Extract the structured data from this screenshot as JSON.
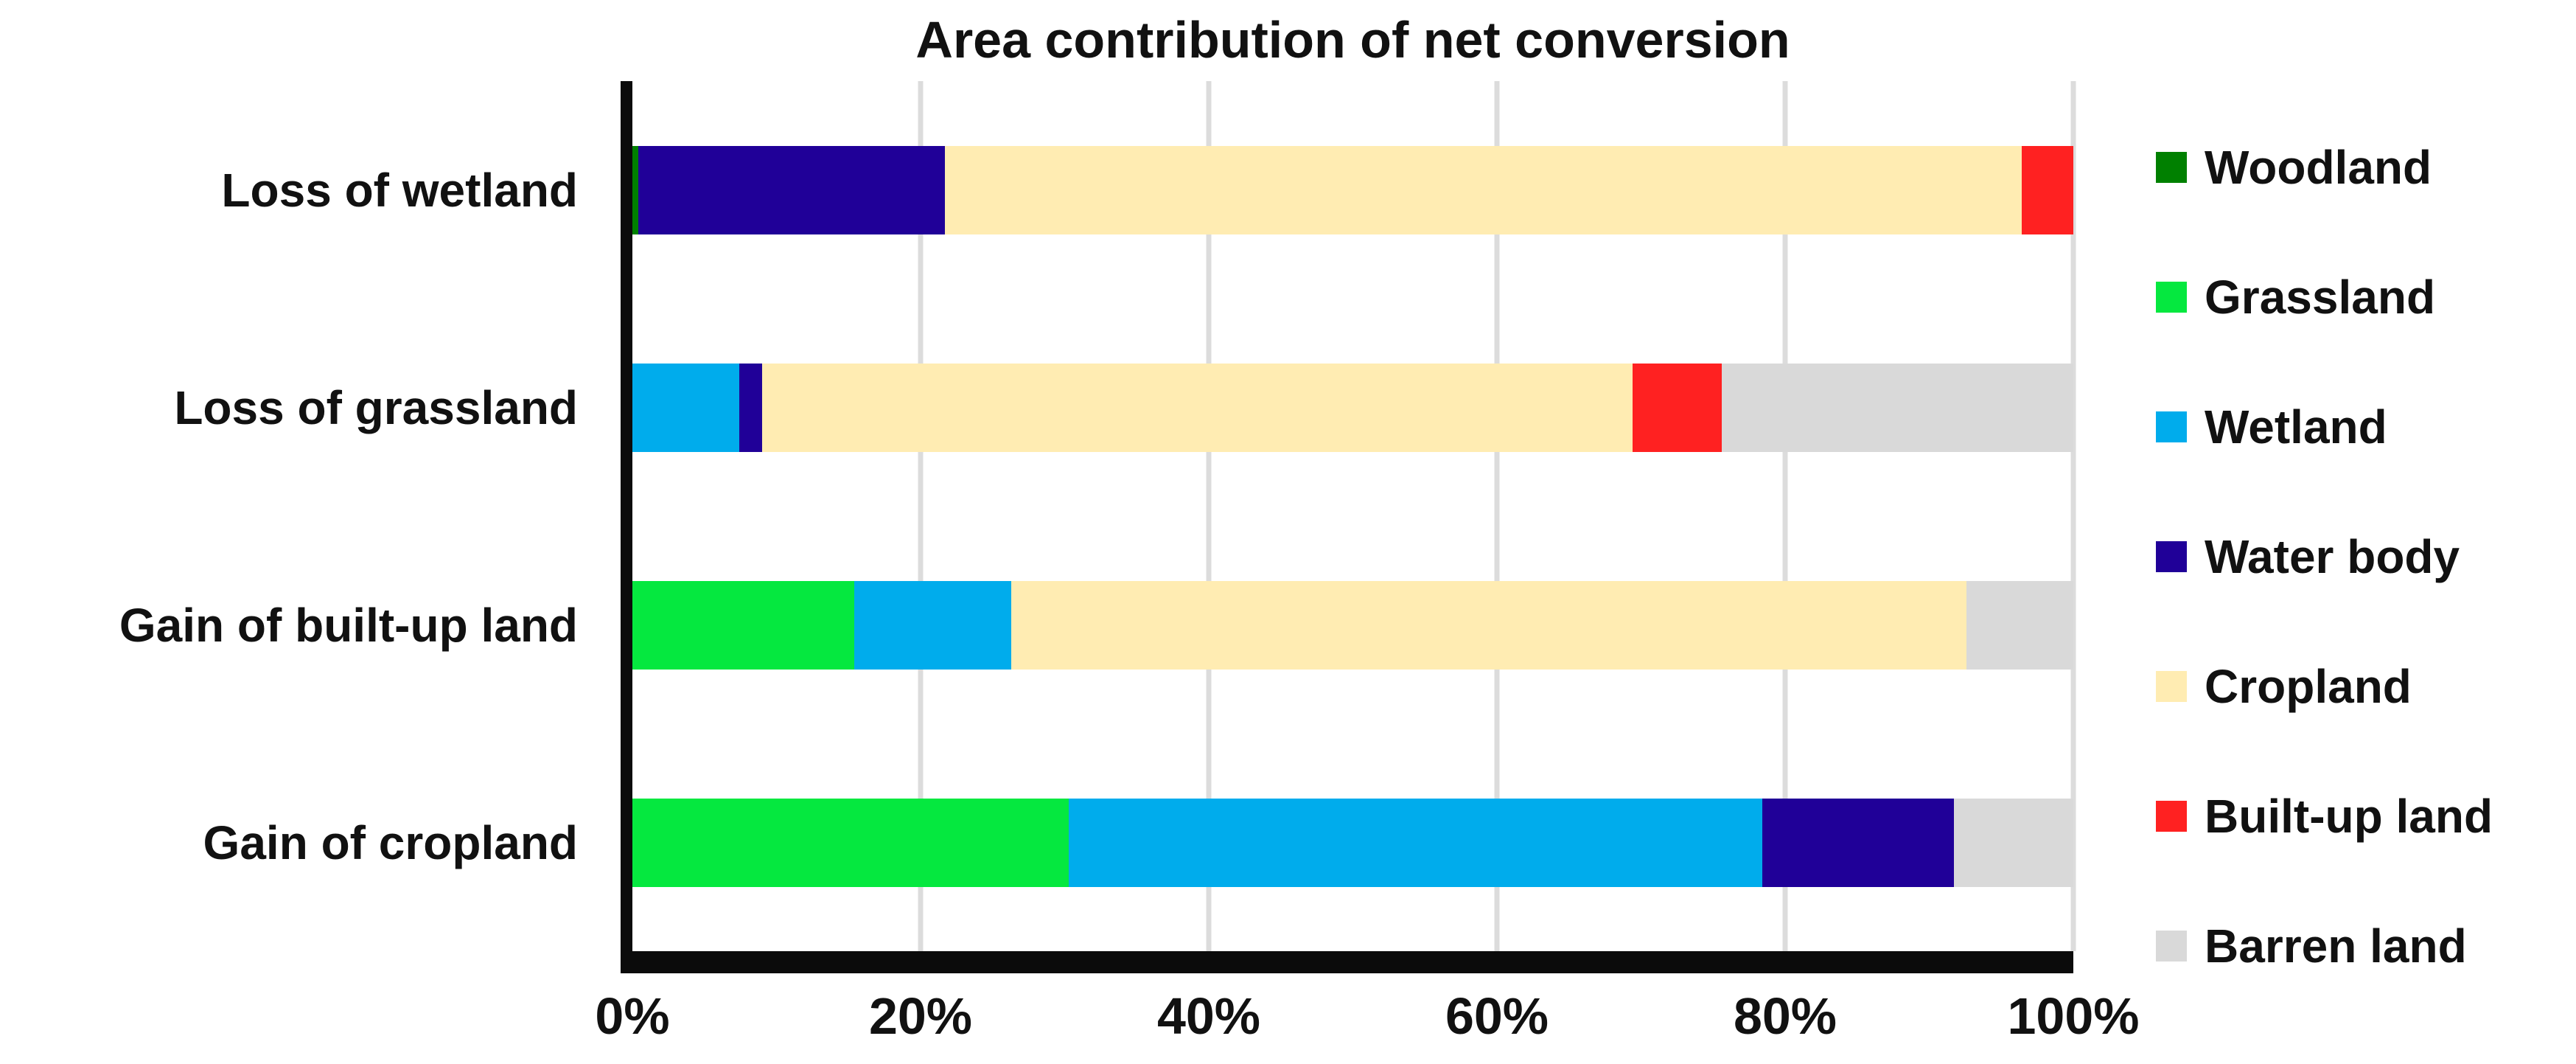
{
  "chart_data": {
    "type": "bar",
    "orientation": "horizontal",
    "stacked": true,
    "title": "Area contribution of net conversion",
    "categories": [
      "Loss of wetland",
      "Loss of grassland",
      "Gain of built-up land",
      "Gain of cropland"
    ],
    "series": [
      {
        "name": "Woodland",
        "color": "#008000",
        "values": [
          0.4,
          0,
          0,
          0
        ]
      },
      {
        "name": "Grassland",
        "color": "#05E83F",
        "values": [
          0,
          0,
          15.4,
          30.3
        ]
      },
      {
        "name": "Wetland",
        "color": "#00ACEC",
        "values": [
          0,
          7.4,
          10.9,
          48.1
        ]
      },
      {
        "name": "Water body",
        "color": "#200098",
        "values": [
          21.3,
          1.6,
          0,
          13.3
        ]
      },
      {
        "name": "Cropland",
        "color": "#FFECB2",
        "values": [
          74.7,
          60.4,
          66.3,
          0
        ]
      },
      {
        "name": "Built-up land",
        "color": "#FF2121",
        "values": [
          3.6,
          6.2,
          0,
          0
        ]
      },
      {
        "name": "Barren land",
        "color": "#D9D9D9",
        "values": [
          0,
          24.4,
          7.4,
          8.3
        ]
      }
    ],
    "x_ticks": [
      {
        "value": 0,
        "label": "0%"
      },
      {
        "value": 20,
        "label": "20%"
      },
      {
        "value": 40,
        "label": "40%"
      },
      {
        "value": 60,
        "label": "60%"
      },
      {
        "value": 80,
        "label": "80%"
      },
      {
        "value": 100,
        "label": "100%"
      }
    ],
    "xlim": [
      0,
      100
    ],
    "xlabel": "",
    "ylabel": "",
    "grid": "vertical",
    "legend_position": "right"
  },
  "colors": {
    "axis": "#0B0B0B",
    "gridline": "#DCDCDC",
    "text": "#111111",
    "background": "#FFFFFF"
  }
}
